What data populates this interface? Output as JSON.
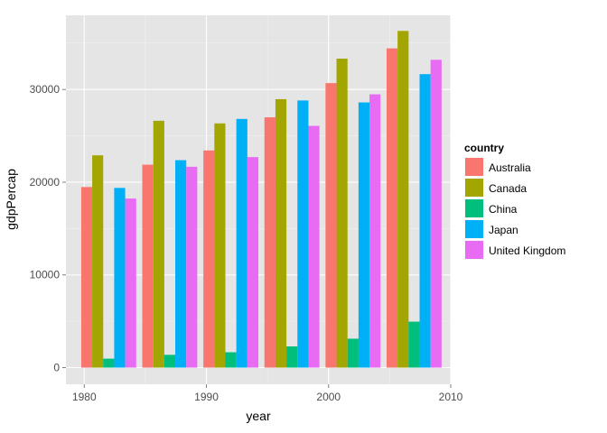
{
  "chart_data": {
    "type": "bar",
    "xlabel": "year",
    "ylabel": "gdpPercap",
    "xlim": [
      1978.5,
      2010
    ],
    "ylim": [
      -1800,
      38000
    ],
    "x_ticks": [
      1980,
      1990,
      2000,
      2010
    ],
    "y_ticks": [
      0,
      10000,
      20000,
      30000
    ],
    "x_tick_labels": [
      "1980",
      "1990",
      "2000",
      "2010"
    ],
    "y_tick_labels": [
      "0",
      "10000",
      "20000",
      "30000"
    ],
    "grid": true,
    "legend": {
      "title": "country",
      "placement": "right"
    },
    "group_width_years": 4.5,
    "x": [
      1982,
      1987,
      1992,
      1997,
      2002,
      2007
    ],
    "series": [
      {
        "name": "Australia",
        "color": "#F8766D",
        "values": [
          19477,
          21889,
          23425,
          26998,
          30688,
          34435
        ]
      },
      {
        "name": "Canada",
        "color": "#A3A500",
        "values": [
          22899,
          26627,
          26343,
          28955,
          33329,
          36319
        ]
      },
      {
        "name": "China",
        "color": "#00BF7D",
        "values": [
          962,
          1379,
          1656,
          2289,
          3119,
          4959
        ]
      },
      {
        "name": "Japan",
        "color": "#00B0F6",
        "values": [
          19384,
          22376,
          26825,
          28817,
          28605,
          31656
        ]
      },
      {
        "name": "United Kingdom",
        "color": "#E76BF3",
        "values": [
          18233,
          21664,
          22705,
          26075,
          29479,
          33203
        ]
      }
    ]
  }
}
